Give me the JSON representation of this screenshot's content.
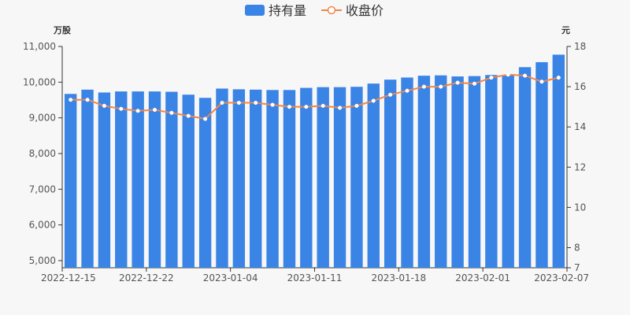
{
  "chart_data": {
    "type": "bar",
    "legend": {
      "position": "top-center",
      "items": [
        {
          "name": "持有量",
          "kind": "bar"
        },
        {
          "name": "收盘价",
          "kind": "line"
        }
      ]
    },
    "y_left": {
      "unit": "万股",
      "min": 4800,
      "max": 11000,
      "ticks": [
        5000,
        6000,
        7000,
        8000,
        9000,
        10000,
        11000
      ],
      "tick_labels": [
        "5,000",
        "6,000",
        "7,000",
        "8,000",
        "9,000",
        "10,000",
        "11,000"
      ]
    },
    "y_right": {
      "unit": "元",
      "min": 7,
      "max": 18,
      "ticks": [
        7,
        8,
        10,
        12,
        14,
        16,
        18
      ],
      "tick_labels": [
        "7",
        "8",
        "10",
        "12",
        "14",
        "16",
        "18"
      ]
    },
    "x_tick_labels": [
      {
        "label": "2022-12-15",
        "index": 0
      },
      {
        "label": "2022-12-22",
        "index": 5
      },
      {
        "label": "2023-01-04",
        "index": 10
      },
      {
        "label": "2023-01-11",
        "index": 15
      },
      {
        "label": "2023-01-18",
        "index": 20
      },
      {
        "label": "2023-02-01",
        "index": 25
      },
      {
        "label": "2023-02-07",
        "index": 29
      }
    ],
    "categories": [
      "2022-12-15",
      "2022-12-16",
      "2022-12-19",
      "2022-12-20",
      "2022-12-21",
      "2022-12-22",
      "2022-12-23",
      "2022-12-26",
      "2022-12-27",
      "2022-12-28",
      "2023-01-04",
      "2023-01-05",
      "2023-01-06",
      "2023-01-09",
      "2023-01-10",
      "2023-01-11",
      "2023-01-12",
      "2023-01-13",
      "2023-01-16",
      "2023-01-17",
      "2023-01-18",
      "2023-01-19",
      "2023-01-20",
      "2023-01-30",
      "2023-01-31",
      "2023-02-01",
      "2023-02-02",
      "2023-02-03",
      "2023-02-06",
      "2023-02-07"
    ],
    "series": [
      {
        "name": "持有量",
        "type": "bar",
        "color": "#3a84e6",
        "values": [
          9670,
          9790,
          9710,
          9740,
          9740,
          9740,
          9730,
          9650,
          9560,
          9820,
          9800,
          9790,
          9780,
          9780,
          9840,
          9860,
          9860,
          9870,
          9960,
          10070,
          10130,
          10180,
          10190,
          10160,
          10170,
          10200,
          10200,
          10420,
          10560,
          10770
        ]
      },
      {
        "name": "收盘价",
        "type": "line",
        "axis": "right",
        "color": "#f0864a",
        "values": [
          15.35,
          15.35,
          15.05,
          14.9,
          14.8,
          14.85,
          14.7,
          14.55,
          14.4,
          15.2,
          15.2,
          15.2,
          15.1,
          15.0,
          15.0,
          15.05,
          14.95,
          15.05,
          15.3,
          15.6,
          15.8,
          16.0,
          16.0,
          16.2,
          16.15,
          16.45,
          16.6,
          16.55,
          16.25,
          16.45
        ]
      }
    ]
  }
}
